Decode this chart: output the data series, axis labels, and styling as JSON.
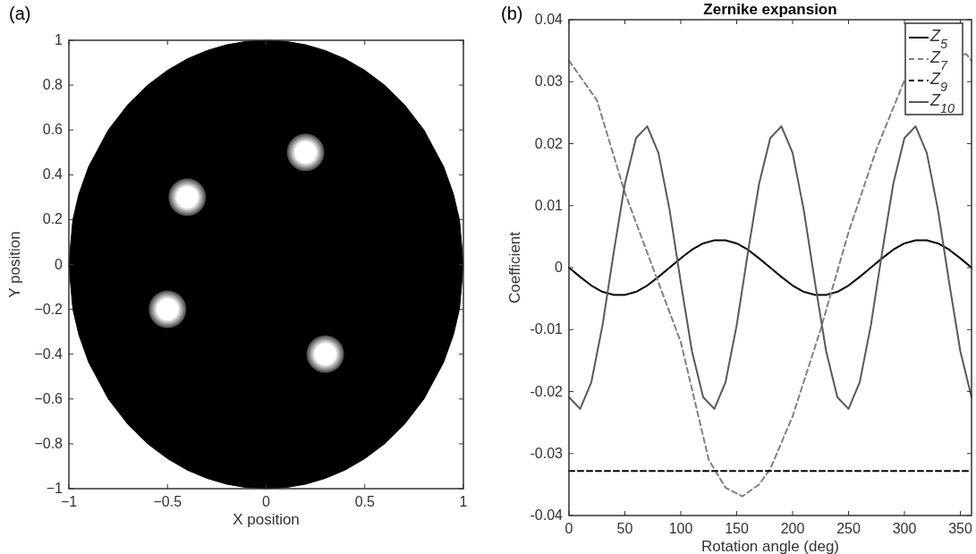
{
  "chart_data": [
    {
      "type": "scatter",
      "annotations": [
        "(a)"
      ],
      "xlabel": "X position",
      "ylabel": "Y position",
      "xlim": [
        -1,
        1
      ],
      "ylim": [
        -1,
        1
      ],
      "xticks": [
        {
          "value": -1,
          "label": "−1"
        },
        {
          "value": -0.5,
          "label": "−0.5"
        },
        0,
        0.5,
        1
      ],
      "yticks": [
        {
          "value": -1,
          "label": "−1"
        },
        {
          "value": -0.8,
          "label": "−0.8"
        },
        {
          "value": -0.6,
          "label": "−0.6"
        },
        {
          "value": -0.4,
          "label": "−0.4"
        },
        {
          "value": -0.2,
          "label": "−0.2"
        },
        0,
        0.2,
        0.4,
        0.6,
        0.8,
        1
      ],
      "series": [
        {
          "color": "#ffffff",
          "marker": "circle",
          "x": [
            -0.4,
            0.2,
            -0.5,
            0.3
          ],
          "values": [
            0.3,
            0.5,
            -0.2,
            -0.4
          ]
        },
        {
          "type": "area",
          "color": "#000000",
          "x": [
            -1,
            -0.98,
            -0.95,
            -0.9,
            -0.8,
            -0.7,
            -0.6,
            -0.5,
            -0.4,
            -0.3,
            -0.2,
            -0.1,
            0,
            0.1,
            0.2,
            0.3,
            0.4,
            0.5,
            0.6,
            0.7,
            0.8,
            0.9,
            0.95,
            0.98,
            1
          ],
          "values": [
            0,
            0.199,
            0.312,
            0.436,
            0.6,
            0.714,
            0.8,
            0.866,
            0.917,
            0.954,
            0.98,
            0.995,
            1,
            0.995,
            0.98,
            0.954,
            0.917,
            0.866,
            0.8,
            0.714,
            0.6,
            0.436,
            0.312,
            0.199,
            0
          ]
        },
        {
          "type": "area",
          "color": "#000000",
          "x": [
            -1,
            -0.98,
            -0.95,
            -0.9,
            -0.8,
            -0.7,
            -0.6,
            -0.5,
            -0.4,
            -0.3,
            -0.2,
            -0.1,
            0,
            0.1,
            0.2,
            0.3,
            0.4,
            0.5,
            0.6,
            0.7,
            0.8,
            0.9,
            0.95,
            0.98,
            1
          ],
          "values": [
            0,
            -0.199,
            -0.312,
            -0.436,
            -0.6,
            -0.714,
            -0.8,
            -0.866,
            -0.917,
            -0.954,
            -0.98,
            -0.995,
            -1,
            -0.995,
            -0.98,
            -0.954,
            -0.917,
            -0.866,
            -0.8,
            -0.714,
            -0.6,
            -0.436,
            -0.312,
            -0.199,
            0
          ]
        }
      ]
    },
    {
      "type": "line",
      "annotations": [
        "(b)"
      ],
      "title": "Zernike expansion",
      "xlabel": "Rotation angle (deg)",
      "ylabel": "Coefficient",
      "xlim": [
        0,
        360
      ],
      "ylim": [
        -0.04,
        0.04
      ],
      "xticks": [
        0,
        50,
        100,
        150,
        200,
        250,
        300,
        350
      ],
      "yticks": [
        {
          "value": -0.04,
          "label": "-0.04"
        },
        {
          "value": -0.03,
          "label": "-0.03"
        },
        {
          "value": -0.02,
          "label": "-0.02"
        },
        {
          "value": -0.01,
          "label": "-0.01"
        },
        0,
        0.01,
        0.02,
        0.03,
        0.04
      ],
      "legend": "top right",
      "series": [
        {
          "name": "Z$_{5}$",
          "color": "#000000",
          "line_style": "solid",
          "x": [
            0,
            10,
            20,
            30,
            40,
            50,
            60,
            70,
            80,
            90,
            100,
            110,
            120,
            130,
            140,
            150,
            160,
            170,
            180,
            190,
            200,
            210,
            220,
            230,
            240,
            250,
            260,
            270,
            280,
            290,
            300,
            310,
            320,
            330,
            340,
            350,
            360
          ],
          "values": [
            0,
            -0.0015,
            -0.0029,
            -0.0039,
            -0.0044,
            -0.0044,
            -0.0039,
            -0.0029,
            -0.0015,
            0,
            0.0015,
            0.0029,
            0.0039,
            0.0044,
            0.0044,
            0.0039,
            0.0029,
            0.0015,
            0,
            -0.0015,
            -0.0029,
            -0.0039,
            -0.0044,
            -0.0044,
            -0.0039,
            -0.0029,
            -0.0015,
            0,
            0.0015,
            0.0029,
            0.0039,
            0.0044,
            0.0044,
            0.0039,
            0.0029,
            0.0015,
            0
          ]
        },
        {
          "name": "Z$_{7}$",
          "color": "#808080",
          "line_style": "dashed",
          "x": [
            0,
            25,
            50,
            75,
            100,
            125,
            140,
            155,
            170,
            180,
            200,
            225,
            250,
            275,
            300,
            325,
            345,
            355,
            360
          ],
          "values": [
            0.0334,
            0.027,
            0.0121,
            0,
            -0.012,
            -0.031,
            -0.0355,
            -0.0369,
            -0.035,
            -0.0325,
            -0.024,
            -0.01,
            0.0057,
            0.0191,
            0.0302,
            null,
            null,
            0.0345,
            0.0334
          ]
        },
        {
          "name": "Z$_{9}$",
          "color": "#000000",
          "line_style": "dashed",
          "x": [
            0,
            360
          ],
          "values": [
            -0.0328,
            -0.0328
          ]
        },
        {
          "name": "Z$_{10}$",
          "color": "#595959",
          "line_style": "solid",
          "x": [
            0,
            10,
            20,
            30,
            40,
            50,
            60,
            70,
            80,
            90,
            100,
            110,
            120,
            130,
            140,
            150,
            160,
            170,
            180,
            190,
            200,
            210,
            220,
            230,
            240,
            250,
            260,
            270,
            280,
            290,
            300,
            310,
            320,
            330,
            340,
            350,
            360
          ],
          "values": [
            -0.0209,
            -0.0228,
            -0.0185,
            -0.0093,
            0.0024,
            0.0135,
            0.0209,
            0.0228,
            0.0185,
            0.0093,
            -0.0024,
            -0.0135,
            -0.0209,
            -0.0228,
            -0.0185,
            -0.0093,
            0.0024,
            0.0135,
            0.0209,
            0.0228,
            0.0185,
            0.0093,
            -0.0024,
            -0.0135,
            -0.0209,
            -0.0228,
            -0.0185,
            -0.0093,
            0.0024,
            0.0135,
            0.0209,
            0.0228,
            0.0185,
            0.0093,
            -0.0024,
            -0.0135,
            -0.0209
          ]
        }
      ]
    }
  ]
}
